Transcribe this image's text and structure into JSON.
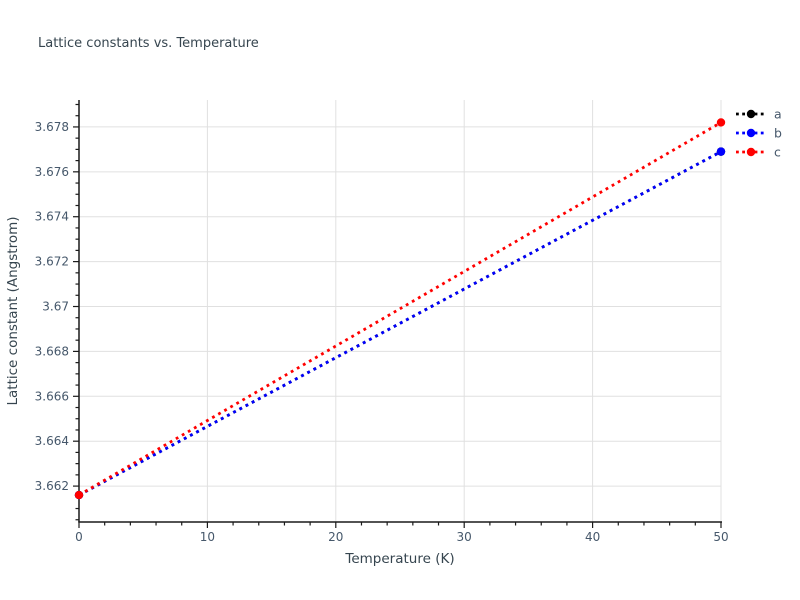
{
  "chart_data": {
    "type": "line",
    "title": "Lattice constants vs. Temperature",
    "xlabel": "Temperature (K)",
    "ylabel": "Lattice constant (Angstrom)",
    "xlim": [
      0,
      50
    ],
    "ylim": [
      3.6604,
      3.6792
    ],
    "x_ticks": [
      0,
      10,
      20,
      30,
      40,
      50
    ],
    "x_tick_labels": [
      "0",
      "10",
      "20",
      "30",
      "40",
      "50"
    ],
    "x_minor_tick_step": 2,
    "y_ticks": [
      3.662,
      3.664,
      3.666,
      3.668,
      3.67,
      3.672,
      3.674,
      3.676,
      3.678
    ],
    "y_tick_labels": [
      "3.662",
      "3.664",
      "3.666",
      "3.668",
      "3.67",
      "3.672",
      "3.674",
      "3.676",
      "3.678"
    ],
    "y_minor_tick_step": 0.0005,
    "grid": true,
    "linestyle": "dotted",
    "marker": "circle",
    "series": [
      {
        "name": "a",
        "color": "#000000",
        "x": [
          0,
          50
        ],
        "y": [
          3.6616,
          3.6769
        ]
      },
      {
        "name": "b",
        "color": "#0000ff",
        "x": [
          0,
          50
        ],
        "y": [
          3.6616,
          3.6769
        ]
      },
      {
        "name": "c",
        "color": "#ff0000",
        "x": [
          0,
          50
        ],
        "y": [
          3.6616,
          3.6782
        ]
      }
    ],
    "legend": {
      "position": "upper right",
      "entries": [
        "a",
        "b",
        "c"
      ]
    },
    "colors": {
      "title_text": "#36454f",
      "axis_label_text": "#36454f",
      "tick_label_text": "#46586b",
      "legend_text": "#46586b",
      "grid": "#e0e0e0",
      "axis_spine": "#1a1a1a",
      "background": "#ffffff"
    }
  }
}
